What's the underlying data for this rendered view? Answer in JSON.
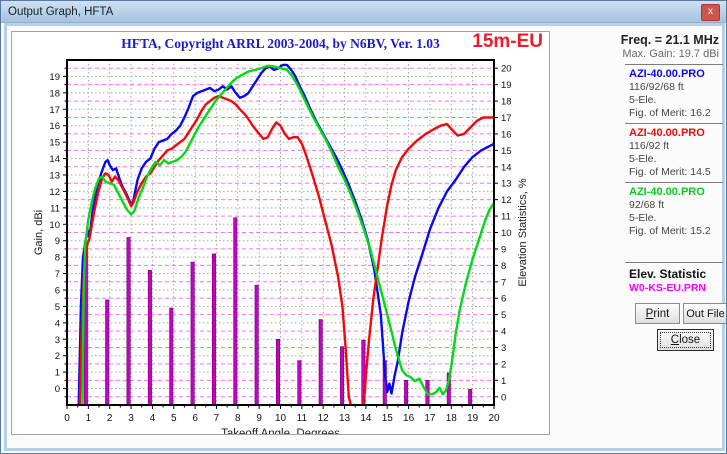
{
  "window": {
    "title": "Output Graph, HFTA",
    "close_glyph": "x"
  },
  "graph": {
    "title": "HFTA, Copyright ARRL 2003-2004, by N6BV, Ver. 1.03",
    "band_label": "15m-EU"
  },
  "sidebar": {
    "freq": "Freq. = 21.1 MHz",
    "max_gain": "Max. Gain: 19.7 dBi",
    "entries": [
      {
        "name": "AZI-40.00.PRO",
        "heights": "116/92/68 ft",
        "elements": "5-Ele.",
        "merit": "Fig. of Merit:  16.2",
        "color": "#0a0af0"
      },
      {
        "name": "AZI-40.00.PRO",
        "heights": "116/92 ft",
        "elements": "5-Ele.",
        "merit": "Fig. of Merit:  14.5",
        "color": "#f00a0a"
      },
      {
        "name": "AZI-40.00.PRO",
        "heights": "92/68 ft",
        "elements": "5-Ele.",
        "merit": "Fig. of Merit:  15.2",
        "color": "#00cf1a"
      }
    ],
    "elev_title": "Elev. Statistic",
    "elev_file": "W0-KS-EU.PRN",
    "buttons": {
      "print": "Print",
      "outfile": "Out File",
      "close": "Close"
    }
  },
  "chart_data": {
    "type": "line+bar",
    "title": "HFTA, Copyright ARRL 2003-2004, by N6BV, Ver. 1.03",
    "xlabel": "Takeoff Angle, Degrees",
    "ylabel_left": "Gain, dBi",
    "ylabel_right": "Elevation Statistics, %",
    "x_min": 0,
    "x_max": 20,
    "y_left_min": 0,
    "y_left_max": 19,
    "y_right_min": 0,
    "y_right_max": 20,
    "grid_color_major": "#a6a6a6",
    "grid_color_minor": "#ff6dff",
    "series": [
      {
        "name": "AZI-40.00.PRO 116/92/68 ft",
        "color": "#0808f2",
        "points": [
          [
            0.55,
            -1
          ],
          [
            0.65,
            5.0
          ],
          [
            0.75,
            8.0
          ],
          [
            0.9,
            9.2
          ],
          [
            1.0,
            9.6
          ],
          [
            1.05,
            9.2
          ],
          [
            1.2,
            10.8
          ],
          [
            1.4,
            12.2
          ],
          [
            1.6,
            13.1
          ],
          [
            1.8,
            13.8
          ],
          [
            1.9,
            13.9
          ],
          [
            2.0,
            13.6
          ],
          [
            2.15,
            13.3
          ],
          [
            2.3,
            13.4
          ],
          [
            2.45,
            12.8
          ],
          [
            2.6,
            12.3
          ],
          [
            2.8,
            11.8
          ],
          [
            3.0,
            11.2
          ],
          [
            3.1,
            11.4
          ],
          [
            3.3,
            12.7
          ],
          [
            3.5,
            13.4
          ],
          [
            3.7,
            13.8
          ],
          [
            3.9,
            14.0
          ],
          [
            4.1,
            14.6
          ],
          [
            4.3,
            15.0
          ],
          [
            4.5,
            15.1
          ],
          [
            4.7,
            15.2
          ],
          [
            4.9,
            15.5
          ],
          [
            5.1,
            15.7
          ],
          [
            5.3,
            16.0
          ],
          [
            5.5,
            16.5
          ],
          [
            5.7,
            17.1
          ],
          [
            5.9,
            17.8
          ],
          [
            6.1,
            18.0
          ],
          [
            6.3,
            18.1
          ],
          [
            6.5,
            18.2
          ],
          [
            6.7,
            18.3
          ],
          [
            6.9,
            18.1
          ],
          [
            7.1,
            18.2
          ],
          [
            7.3,
            18.4
          ],
          [
            7.5,
            18.2
          ],
          [
            7.7,
            18.4
          ],
          [
            7.9,
            18.0
          ],
          [
            8.1,
            17.7
          ],
          [
            8.3,
            17.8
          ],
          [
            8.5,
            18.0
          ],
          [
            8.7,
            18.4
          ],
          [
            8.9,
            18.8
          ],
          [
            9.1,
            19.2
          ],
          [
            9.3,
            19.5
          ],
          [
            9.5,
            19.6
          ],
          [
            9.7,
            19.4
          ],
          [
            9.9,
            19.5
          ],
          [
            10.1,
            19.7
          ],
          [
            10.3,
            19.7
          ],
          [
            10.5,
            19.4
          ],
          [
            10.7,
            19.0
          ],
          [
            10.9,
            18.4
          ],
          [
            11.1,
            17.9
          ],
          [
            11.4,
            17.0
          ],
          [
            11.7,
            16.2
          ],
          [
            12.0,
            15.5
          ],
          [
            12.3,
            14.8
          ],
          [
            12.6,
            14.1
          ],
          [
            12.9,
            13.3
          ],
          [
            13.2,
            12.4
          ],
          [
            13.5,
            11.4
          ],
          [
            13.8,
            10.3
          ],
          [
            14.1,
            9.0
          ],
          [
            14.4,
            7.2
          ],
          [
            14.7,
            4.5
          ],
          [
            14.9,
            0.8
          ],
          [
            15.0,
            -0.2
          ],
          [
            15.1,
            0.3
          ],
          [
            15.2,
            -0.3
          ],
          [
            15.35,
            0.8
          ],
          [
            15.5,
            1.7
          ],
          [
            15.7,
            3.4
          ],
          [
            16.0,
            5.3
          ],
          [
            16.3,
            6.8
          ],
          [
            16.6,
            8.0
          ],
          [
            17.0,
            9.7
          ],
          [
            17.4,
            11.0
          ],
          [
            17.8,
            12.0
          ],
          [
            18.2,
            12.7
          ],
          [
            18.6,
            13.5
          ],
          [
            19.0,
            14.1
          ],
          [
            19.4,
            14.5
          ],
          [
            19.7,
            14.7
          ],
          [
            20.0,
            14.9
          ]
        ]
      },
      {
        "name": "AZI-40.00.PRO 116/92 ft",
        "color": "#f20808",
        "points": [
          [
            0.6,
            -1
          ],
          [
            0.7,
            4.0
          ],
          [
            0.8,
            7.2
          ],
          [
            0.95,
            8.8
          ],
          [
            1.05,
            9.1
          ],
          [
            1.25,
            10.6
          ],
          [
            1.45,
            11.9
          ],
          [
            1.65,
            12.8
          ],
          [
            1.8,
            13.1
          ],
          [
            1.95,
            13.0
          ],
          [
            2.1,
            12.6
          ],
          [
            2.25,
            12.9
          ],
          [
            2.4,
            12.7
          ],
          [
            2.6,
            12.2
          ],
          [
            2.8,
            11.7
          ],
          [
            3.0,
            11.1
          ],
          [
            3.1,
            11.3
          ],
          [
            3.3,
            12.0
          ],
          [
            3.5,
            12.5
          ],
          [
            3.7,
            12.9
          ],
          [
            3.9,
            13.1
          ],
          [
            4.1,
            13.5
          ],
          [
            4.3,
            13.9
          ],
          [
            4.5,
            14.2
          ],
          [
            4.7,
            14.5
          ],
          [
            4.9,
            14.6
          ],
          [
            5.1,
            14.8
          ],
          [
            5.3,
            15.0
          ],
          [
            5.5,
            15.2
          ],
          [
            5.7,
            15.6
          ],
          [
            5.9,
            16.0
          ],
          [
            6.1,
            16.4
          ],
          [
            6.3,
            16.9
          ],
          [
            6.5,
            17.3
          ],
          [
            6.7,
            17.5
          ],
          [
            6.9,
            17.7
          ],
          [
            7.1,
            17.8
          ],
          [
            7.3,
            17.7
          ],
          [
            7.5,
            17.6
          ],
          [
            7.7,
            17.5
          ],
          [
            7.9,
            17.3
          ],
          [
            8.1,
            17.0
          ],
          [
            8.4,
            16.6
          ],
          [
            8.7,
            16.0
          ],
          [
            9.0,
            15.5
          ],
          [
            9.2,
            15.2
          ],
          [
            9.4,
            15.3
          ],
          [
            9.6,
            15.8
          ],
          [
            9.8,
            16.2
          ],
          [
            10.0,
            16.0
          ],
          [
            10.2,
            15.5
          ],
          [
            10.4,
            15.2
          ],
          [
            10.6,
            15.3
          ],
          [
            10.8,
            15.3
          ],
          [
            11.0,
            14.9
          ],
          [
            11.2,
            14.2
          ],
          [
            11.5,
            13.0
          ],
          [
            11.8,
            11.7
          ],
          [
            12.1,
            10.2
          ],
          [
            12.4,
            8.7
          ],
          [
            12.7,
            6.8
          ],
          [
            12.9,
            5.0
          ],
          [
            13.05,
            2.5
          ],
          [
            13.2,
            -0.5
          ],
          [
            13.35,
            -1.3
          ],
          [
            13.8,
            -1.3
          ],
          [
            13.95,
            -0.2
          ],
          [
            14.0,
            0.8
          ],
          [
            14.15,
            3.0
          ],
          [
            14.35,
            5.5
          ],
          [
            14.55,
            7.3
          ],
          [
            14.75,
            9.2
          ],
          [
            15.0,
            11.2
          ],
          [
            15.2,
            12.4
          ],
          [
            15.4,
            13.3
          ],
          [
            15.7,
            14.1
          ],
          [
            16.0,
            14.6
          ],
          [
            16.4,
            15.1
          ],
          [
            16.8,
            15.5
          ],
          [
            17.2,
            15.8
          ],
          [
            17.5,
            16.0
          ],
          [
            17.8,
            16.1
          ],
          [
            18.0,
            15.8
          ],
          [
            18.3,
            15.4
          ],
          [
            18.6,
            15.5
          ],
          [
            18.9,
            15.9
          ],
          [
            19.2,
            16.3
          ],
          [
            19.5,
            16.5
          ],
          [
            20.0,
            16.5
          ]
        ]
      },
      {
        "name": "AZI-40.00.PRO 92/68 ft",
        "color": "#00dc14",
        "points": [
          [
            0.72,
            -1
          ],
          [
            0.78,
            6.0
          ],
          [
            0.85,
            8.7
          ],
          [
            1.0,
            10.3
          ],
          [
            1.15,
            11.3
          ],
          [
            1.3,
            12.1
          ],
          [
            1.5,
            12.8
          ],
          [
            1.65,
            12.9
          ],
          [
            1.8,
            12.6
          ],
          [
            2.0,
            12.5
          ],
          [
            2.2,
            12.4
          ],
          [
            2.4,
            11.9
          ],
          [
            2.6,
            11.4
          ],
          [
            2.8,
            10.9
          ],
          [
            3.0,
            10.6
          ],
          [
            3.15,
            10.8
          ],
          [
            3.35,
            11.6
          ],
          [
            3.55,
            12.2
          ],
          [
            3.75,
            12.9
          ],
          [
            3.95,
            13.4
          ],
          [
            4.15,
            13.8
          ],
          [
            4.35,
            13.6
          ],
          [
            4.55,
            13.9
          ],
          [
            4.75,
            13.7
          ],
          [
            4.95,
            13.8
          ],
          [
            5.15,
            13.9
          ],
          [
            5.35,
            14.1
          ],
          [
            5.55,
            14.4
          ],
          [
            5.75,
            14.9
          ],
          [
            5.95,
            15.4
          ],
          [
            6.15,
            15.9
          ],
          [
            6.35,
            16.3
          ],
          [
            6.55,
            16.7
          ],
          [
            6.75,
            17.1
          ],
          [
            6.95,
            17.5
          ],
          [
            7.15,
            17.8
          ],
          [
            7.35,
            18.1
          ],
          [
            7.55,
            18.4
          ],
          [
            7.75,
            18.7
          ],
          [
            7.95,
            18.9
          ],
          [
            8.2,
            19.1
          ],
          [
            8.5,
            19.3
          ],
          [
            8.8,
            19.4
          ],
          [
            9.1,
            19.5
          ],
          [
            9.4,
            19.65
          ],
          [
            9.7,
            19.6
          ],
          [
            10.0,
            19.5
          ],
          [
            10.3,
            19.4
          ],
          [
            10.5,
            19.1
          ],
          [
            10.7,
            18.7
          ],
          [
            10.9,
            18.2
          ],
          [
            11.2,
            17.4
          ],
          [
            11.5,
            16.6
          ],
          [
            11.8,
            15.9
          ],
          [
            12.1,
            15.2
          ],
          [
            12.4,
            14.4
          ],
          [
            12.7,
            13.5
          ],
          [
            13.0,
            12.7
          ],
          [
            13.3,
            11.8
          ],
          [
            13.6,
            10.8
          ],
          [
            13.9,
            9.7
          ],
          [
            14.2,
            8.5
          ],
          [
            14.5,
            7.0
          ],
          [
            14.8,
            5.5
          ],
          [
            15.1,
            4.0
          ],
          [
            15.4,
            2.4
          ],
          [
            15.7,
            1.1
          ],
          [
            15.9,
            0.8
          ],
          [
            16.1,
            0.7
          ],
          [
            16.3,
            0.45
          ],
          [
            16.5,
            0.6
          ],
          [
            16.7,
            0.1
          ],
          [
            16.9,
            -0.35
          ],
          [
            17.1,
            -0.35
          ],
          [
            17.3,
            -0.2
          ],
          [
            17.45,
            0.05
          ],
          [
            17.6,
            -0.35
          ],
          [
            17.75,
            -0.1
          ],
          [
            17.9,
            0.6
          ],
          [
            18.05,
            1.8
          ],
          [
            18.2,
            3.3
          ],
          [
            18.4,
            4.8
          ],
          [
            18.7,
            6.5
          ],
          [
            19.0,
            7.9
          ],
          [
            19.3,
            9.1
          ],
          [
            19.6,
            10.3
          ],
          [
            19.8,
            10.9
          ],
          [
            20.0,
            11.3
          ]
        ]
      }
    ],
    "bars": {
      "name": "W0-KS-EU.PRN",
      "color": "#c403c4",
      "unit": "%",
      "values": [
        [
          1,
          9.4
        ],
        [
          2,
          5.9
        ],
        [
          3,
          9.7
        ],
        [
          4,
          7.7
        ],
        [
          5,
          5.4
        ],
        [
          6,
          8.2
        ],
        [
          7,
          8.7
        ],
        [
          8,
          10.9
        ],
        [
          9,
          6.8
        ],
        [
          10,
          3.5
        ],
        [
          11,
          2.2
        ],
        [
          12,
          4.7
        ],
        [
          13,
          3.05
        ],
        [
          14,
          3.45
        ],
        [
          15,
          2.2
        ],
        [
          16,
          1.0
        ],
        [
          17,
          1.0
        ],
        [
          18,
          1.45
        ],
        [
          19,
          0.45
        ]
      ]
    }
  }
}
